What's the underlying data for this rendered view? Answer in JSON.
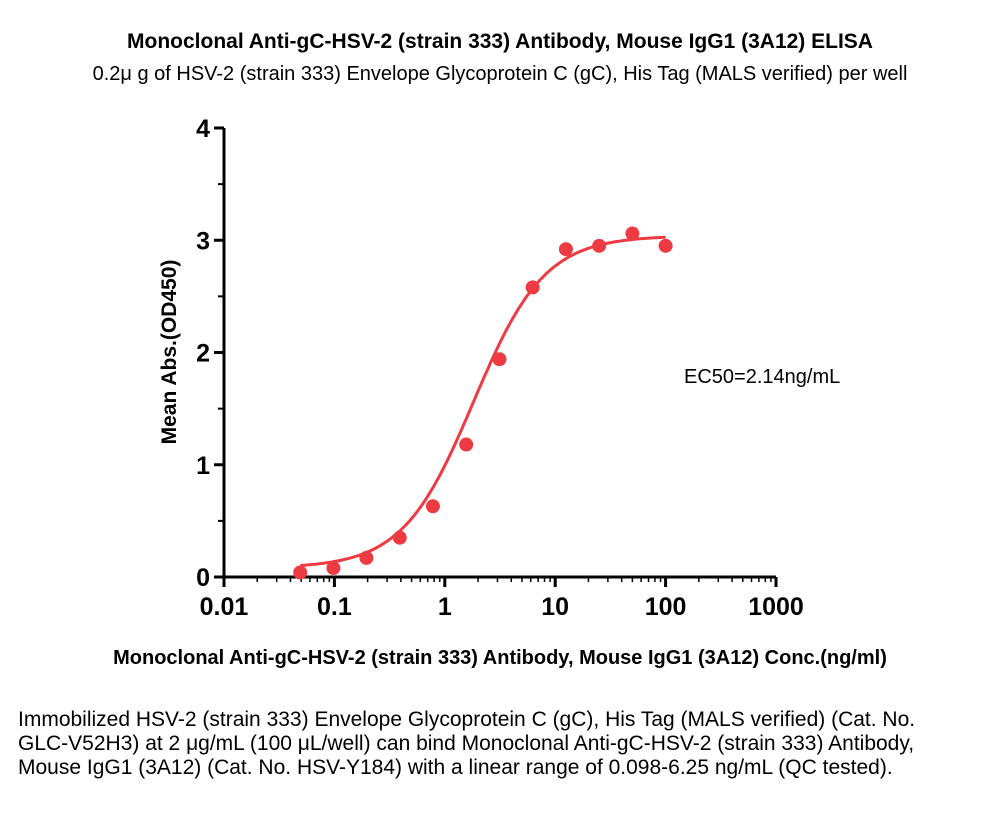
{
  "title": "Monoclonal Anti-gC-HSV-2 (strain 333) Antibody, Mouse IgG1 (3A12) ELISA",
  "subtitle": "0.2μ g of HSV-2 (strain 333) Envelope Glycoprotein C (gC), His Tag (MALS verified) per well",
  "caption": "Immobilized HSV-2 (strain 333) Envelope Glycoprotein C (gC), His Tag (MALS verified) (Cat. No. GLC-V52H3) at 2 μg/mL (100 μL/well) can bind Monoclonal Anti-gC-HSV-2 (strain 333) Antibody, Mouse IgG1 (3A12) (Cat. No. HSV-Y184) with a linear range of 0.098-6.25 ng/mL (QC tested).",
  "chart_data": {
    "type": "scatter",
    "xlabel": "Monoclonal Anti-gC-HSV-2 (strain 333) Antibody, Mouse IgG1 (3A12) Conc.(ng/ml)",
    "ylabel": "Mean Abs.(OD450)",
    "xscale": "log",
    "xlim": [
      0.01,
      1000
    ],
    "ylim": [
      0,
      4
    ],
    "x_ticks": [
      0.01,
      0.1,
      1,
      10,
      100,
      1000
    ],
    "x_tick_labels": [
      "0.01",
      "0.1",
      "1",
      "10",
      "100",
      "1000"
    ],
    "y_ticks": [
      0,
      1,
      2,
      3,
      4
    ],
    "y_tick_labels": [
      "0",
      "1",
      "2",
      "3",
      "4"
    ],
    "grid": false,
    "color": "#ee3b43",
    "series": [
      {
        "x": [
          0.049,
          0.098,
          0.195,
          0.391,
          0.781,
          1.5625,
          3.125,
          6.25,
          12.5,
          25,
          50,
          100
        ],
        "y": [
          0.04,
          0.08,
          0.17,
          0.35,
          0.63,
          1.18,
          1.94,
          2.58,
          2.92,
          2.95,
          3.06,
          2.95
        ],
        "fit": "4PL sigmoid"
      }
    ],
    "annotation": "EC50=2.14ng/mL"
  }
}
